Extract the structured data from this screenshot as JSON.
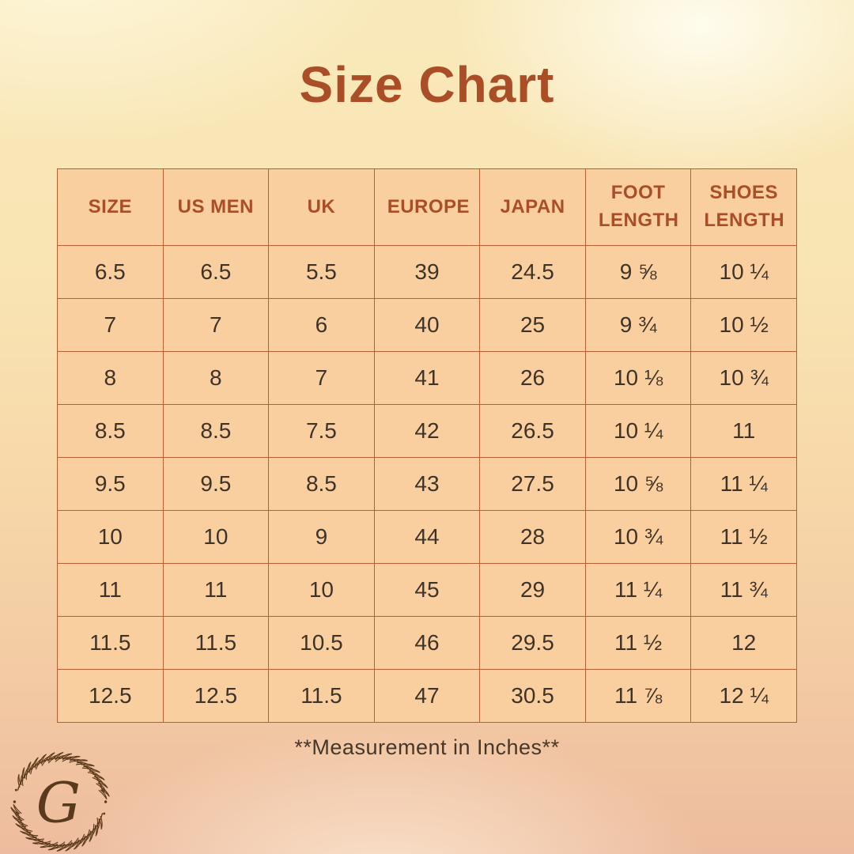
{
  "page": {
    "title": "Size Chart",
    "footnote": "**Measurement in Inches**"
  },
  "logo": {
    "monogram": "G"
  },
  "colors": {
    "title_text": "#a94e27",
    "header_text": "#a94e27",
    "cell_text": "#3e3328",
    "table_fill": "#facfa0",
    "table_border": "#b95e33",
    "background_top": "#f9e9ba",
    "background_bottom": "#edbc9e",
    "logo_brown": "#5d3b1d"
  },
  "chart_data": {
    "type": "table",
    "title": "Size Chart",
    "note": "**Measurement in Inches**",
    "columns": [
      "SIZE",
      "US MEN",
      "UK",
      "EUROPE",
      "JAPAN",
      "FOOT LENGTH",
      "SHOES LENGTH"
    ],
    "rows": [
      [
        "6.5",
        "6.5",
        "5.5",
        "39",
        "24.5",
        "9 ⅝",
        "10 ¼"
      ],
      [
        "7",
        "7",
        "6",
        "40",
        "25",
        "9 ¾",
        "10 ½"
      ],
      [
        "8",
        "8",
        "7",
        "41",
        "26",
        "10 ⅛",
        "10 ¾"
      ],
      [
        "8.5",
        "8.5",
        "7.5",
        "42",
        "26.5",
        "10 ¼",
        "11"
      ],
      [
        "9.5",
        "9.5",
        "8.5",
        "43",
        "27.5",
        "10 ⅝",
        "11 ¼"
      ],
      [
        "10",
        "10",
        "9",
        "44",
        "28",
        "10 ¾",
        "11 ½"
      ],
      [
        "11",
        "11",
        "10",
        "45",
        "29",
        "11 ¼",
        "11 ¾"
      ],
      [
        "11.5",
        "11.5",
        "10.5",
        "46",
        "29.5",
        "11 ½",
        "12"
      ],
      [
        "12.5",
        "12.5",
        "11.5",
        "47",
        "30.5",
        "11 ⅞",
        "12 ¼"
      ]
    ]
  }
}
